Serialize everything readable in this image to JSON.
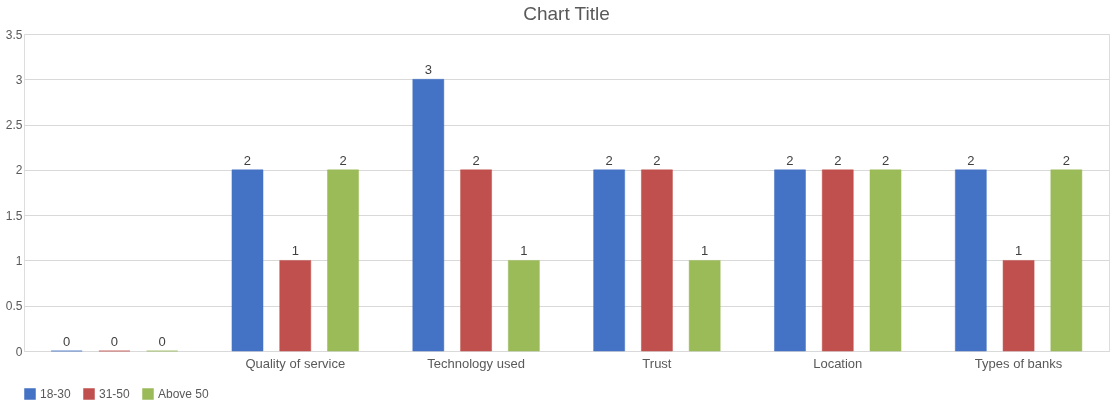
{
  "chart_data": {
    "type": "bar",
    "title": "Chart Title",
    "categories": [
      null,
      "Quality of service",
      "Technology used",
      "Trust",
      "Location",
      "Types of banks"
    ],
    "series": [
      {
        "name": "18-30",
        "color": "#4472c4",
        "values": [
          0,
          2,
          3,
          2,
          2,
          2
        ]
      },
      {
        "name": "31-50",
        "color": "#c0504d",
        "values": [
          0,
          1,
          2,
          2,
          2,
          1
        ]
      },
      {
        "name": "Above 50",
        "color": "#9bbb59",
        "values": [
          0,
          2,
          1,
          1,
          2,
          2
        ]
      }
    ],
    "ylim": [
      0,
      3.5
    ],
    "yticks": [
      0,
      0.5,
      1,
      1.5,
      2,
      2.5,
      3,
      3.5
    ],
    "grid": "y",
    "legend": "bottom",
    "data_labels": true
  }
}
